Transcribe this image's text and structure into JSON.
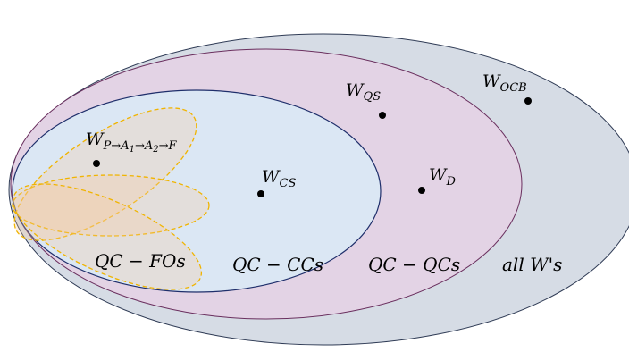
{
  "colors": {
    "outer_fill": "#d6dce5",
    "outer_stroke": "#2f3b55",
    "qs_fill": "#e3d3e5",
    "qs_stroke": "#6a2f5e",
    "cs_fill": "#dbe7f4",
    "cs_stroke": "#1f2f6b",
    "fo_fill": "#f7c99a",
    "fo_stroke": "#f0b400",
    "dot": "#000000"
  },
  "regions": {
    "all": "all W's",
    "qs": "QC − QCs",
    "cs": "QC − CCs",
    "fo": "QC − FOs"
  },
  "points": {
    "ocb": {
      "main": "W",
      "sub": "OCB"
    },
    "qs": {
      "main": "W",
      "sub": "QS"
    },
    "d": {
      "main": "W",
      "sub": "D"
    },
    "cs": {
      "main": "W",
      "sub": "CS"
    },
    "path": {
      "main": "W",
      "p": "P",
      "arrow": "→",
      "a": "A",
      "one": "1",
      "two": "2",
      "f": "F"
    }
  }
}
